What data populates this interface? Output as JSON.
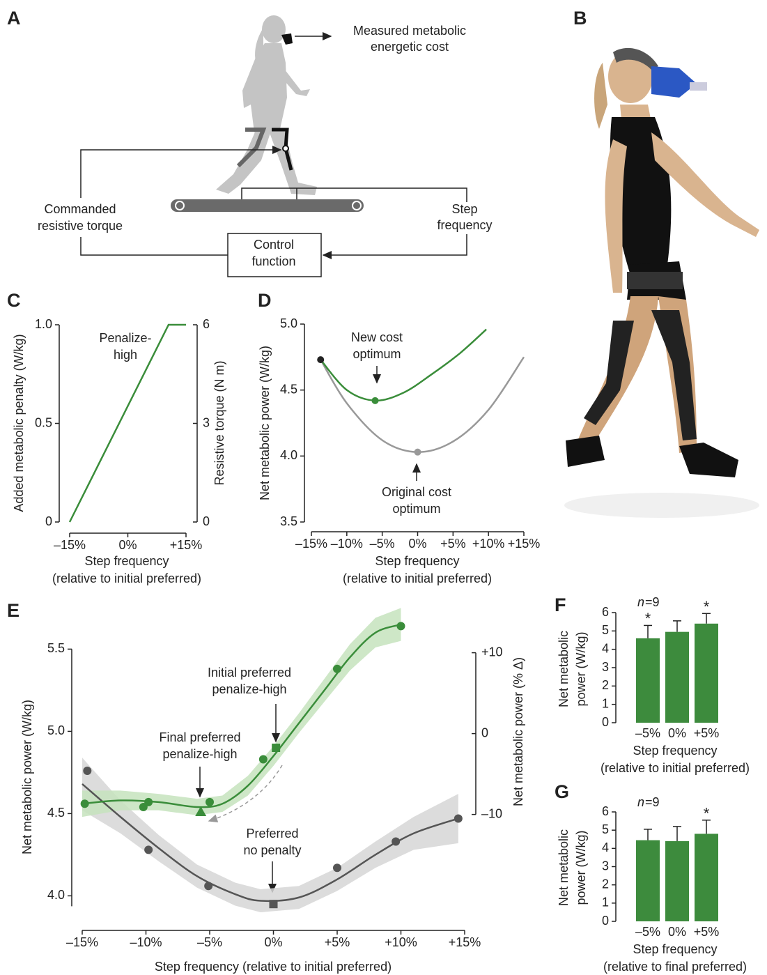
{
  "panel_labels": [
    "A",
    "B"
  ],
  "diagram": {
    "measured": [
      "Measured metabolic",
      "energetic cost"
    ],
    "commanded": [
      "Commanded",
      "resistive torque"
    ],
    "step_frequency": [
      "Step",
      "frequency"
    ],
    "control": [
      "Control",
      "function"
    ]
  },
  "chart_data": [
    {
      "panel": "C",
      "type": "line",
      "x": [
        -15,
        10.5,
        15
      ],
      "series": [
        {
          "color": "#3a8d3a",
          "values": [
            0,
            1,
            1
          ]
        }
      ],
      "xlim": [
        -15,
        15
      ],
      "xticks": [
        {
          "value": -15,
          "label": "–15%"
        },
        {
          "value": 0,
          "label": "0%"
        },
        {
          "value": 15,
          "label": "+15%"
        }
      ],
      "ylim": [
        0,
        1
      ],
      "yticks": [
        0,
        0.5,
        {
          "value": 1,
          "label": "1.0"
        }
      ],
      "y2lim": [
        0,
        6
      ],
      "y2ticks": [
        0,
        3,
        6
      ],
      "ylabel": "Added metabolic penalty (W/kg)",
      "y2label": "Resistive torque (N m)",
      "xlabel": [
        "Step frequency",
        "(relative to initial preferred)"
      ],
      "annotations": [
        {
          "text": [
            "Penalize-",
            "high"
          ]
        }
      ]
    },
    {
      "panel": "D",
      "type": "line",
      "series": [
        {
          "color": "#999999",
          "x": [
            -13.7,
            -10,
            -5,
            0,
            5,
            10,
            15
          ],
          "values": [
            4.73,
            4.4,
            4.12,
            4.03,
            4.11,
            4.35,
            4.75
          ]
        },
        {
          "color": "#3a8d3a",
          "x": [
            -13.7,
            -10,
            -6,
            -2,
            2,
            6,
            9.7
          ],
          "values": [
            4.73,
            4.5,
            4.42,
            4.48,
            4.62,
            4.78,
            4.96
          ]
        }
      ],
      "points": [
        {
          "x": -13.7,
          "y": 4.73,
          "color": "#222222"
        },
        {
          "x": -6,
          "y": 4.42,
          "color": "#3a8d3a"
        },
        {
          "x": 0,
          "y": 4.03,
          "color": "#999999"
        }
      ],
      "xlim": [
        -15,
        15
      ],
      "xticks": [
        {
          "value": -15,
          "label": "–15%"
        },
        {
          "value": -10,
          "label": "–10%"
        },
        {
          "value": -5,
          "label": "–5%"
        },
        {
          "value": 0,
          "label": "0%"
        },
        {
          "value": 5,
          "label": "+5%"
        },
        {
          "value": 10,
          "label": "+10%"
        },
        {
          "value": 15,
          "label": "+15%"
        }
      ],
      "ylim": [
        3.5,
        5.0
      ],
      "yticks": [
        3.5,
        {
          "value": 4,
          "label": "4.0"
        },
        4.5,
        {
          "value": 5,
          "label": "5.0"
        }
      ],
      "ylabel": "Net metabolic power (W/kg)",
      "xlabel": [
        "Step frequency",
        "(relative to initial preferred)"
      ],
      "annotations": [
        {
          "text": [
            "New cost",
            "optimum"
          ]
        },
        {
          "text": [
            "Original cost",
            "optimum"
          ]
        }
      ]
    },
    {
      "panel": "E",
      "type": "line",
      "series": [
        {
          "color": "#555555",
          "band_color": "#d6d6d6",
          "x": [
            -15,
            -12,
            -9,
            -6,
            -3,
            -1,
            2,
            5,
            8,
            11,
            14.5
          ],
          "values": [
            4.68,
            4.48,
            4.29,
            4.12,
            4.01,
            3.97,
            3.99,
            4.1,
            4.25,
            4.38,
            4.47
          ],
          "lower": [
            4.52,
            4.38,
            4.21,
            4.05,
            3.94,
            3.9,
            3.92,
            4.03,
            4.17,
            4.28,
            4.32
          ],
          "upper": [
            4.84,
            4.58,
            4.37,
            4.19,
            4.08,
            4.04,
            4.06,
            4.17,
            4.33,
            4.48,
            4.62
          ],
          "points": {
            "x": [
              -14.6,
              -9.8,
              -5.1,
              5.0,
              9.6,
              14.5
            ],
            "y": [
              4.76,
              4.28,
              4.06,
              4.17,
              4.33,
              4.47
            ]
          }
        },
        {
          "color": "#3a8d3a",
          "band_color": "#c5e3bd",
          "x": [
            -15,
            -12,
            -9,
            -6,
            -4,
            -2,
            0,
            2,
            4,
            6,
            8,
            10
          ],
          "values": [
            4.56,
            4.58,
            4.57,
            4.54,
            4.56,
            4.67,
            4.85,
            5.05,
            5.25,
            5.45,
            5.6,
            5.65
          ],
          "lower": [
            4.48,
            4.52,
            4.52,
            4.49,
            4.51,
            4.61,
            4.79,
            4.99,
            5.18,
            5.37,
            5.51,
            5.55
          ],
          "upper": [
            4.64,
            4.64,
            4.62,
            4.59,
            4.61,
            4.73,
            4.91,
            5.11,
            5.32,
            5.53,
            5.69,
            5.75
          ],
          "points": {
            "x": [
              -14.8,
              -10.2,
              -9.8,
              -5.0,
              -0.8,
              5.0,
              10.0
            ],
            "y": [
              4.56,
              4.54,
              4.57,
              4.57,
              4.83,
              5.38,
              5.64
            ]
          }
        }
      ],
      "markers": [
        {
          "shape": "triangle",
          "x": -5.7,
          "y": 4.51,
          "color": "#3a8d3a"
        },
        {
          "shape": "square",
          "x": 0.2,
          "y": 4.9,
          "color": "#3a8d3a"
        },
        {
          "shape": "square",
          "x": 0,
          "y": 3.95,
          "color": "#555555"
        }
      ],
      "xlim": [
        -15,
        15
      ],
      "xticks": [
        {
          "value": -15,
          "label": "–15%"
        },
        {
          "value": -10,
          "label": "–10%"
        },
        {
          "value": -5,
          "label": "–5%"
        },
        {
          "value": 0,
          "label": "0%"
        },
        {
          "value": 5,
          "label": "+5%"
        },
        {
          "value": 10,
          "label": "+10%"
        },
        {
          "value": 15,
          "label": "+15%"
        }
      ],
      "ylim": [
        3.9,
        5.65
      ],
      "yticks": [
        {
          "value": 4,
          "label": "4.0"
        },
        4.5,
        {
          "value": 5,
          "label": "5.0"
        },
        5.5
      ],
      "y2lim": [
        -22.1,
        13.5
      ],
      "y2ticks": [
        {
          "value": 10,
          "label": "+10"
        },
        0,
        {
          "value": -10,
          "label": "–10"
        }
      ],
      "ylabel": "Net metabolic power (W/kg)",
      "y2label": "Net metabolic power (% Δ)",
      "xlabel": [
        "Step frequency (relative to initial preferred)"
      ],
      "annotations": [
        {
          "text": [
            "Initial preferred",
            "penalize-high"
          ]
        },
        {
          "text": [
            "Final preferred",
            "penalize-high"
          ]
        },
        {
          "text": [
            "Preferred",
            "no penalty"
          ]
        }
      ]
    },
    {
      "panel": "F",
      "type": "bar",
      "categories": [
        "–5%",
        "0%",
        "+5%"
      ],
      "values": [
        4.6,
        4.95,
        5.4
      ],
      "errors": [
        0.7,
        0.6,
        0.55
      ],
      "significance": [
        "*",
        null,
        "*"
      ],
      "color": "#3d8b3d",
      "ylim": [
        0,
        6
      ],
      "yticks": [
        0,
        1,
        2,
        3,
        4,
        5,
        6
      ],
      "ylabel": [
        "Net metabolic",
        "power (W/kg)"
      ],
      "xlabel": [
        "Step frequency",
        "(relative to initial preferred)"
      ],
      "n_symbol": "n",
      "n_text": "=9"
    },
    {
      "panel": "G",
      "type": "bar",
      "categories": [
        "–5%",
        "0%",
        "+5%"
      ],
      "values": [
        4.45,
        4.4,
        4.8
      ],
      "errors": [
        0.6,
        0.8,
        0.75
      ],
      "significance": [
        null,
        null,
        "*"
      ],
      "color": "#3d8b3d",
      "ylim": [
        0,
        6
      ],
      "yticks": [
        0,
        1,
        2,
        3,
        4,
        5,
        6
      ],
      "ylabel": [
        "Net metabolic",
        "power (W/kg)"
      ],
      "xlabel": [
        "Step frequency",
        "(relative to final preferred)"
      ],
      "n_symbol": "n",
      "n_text": "=9"
    }
  ]
}
